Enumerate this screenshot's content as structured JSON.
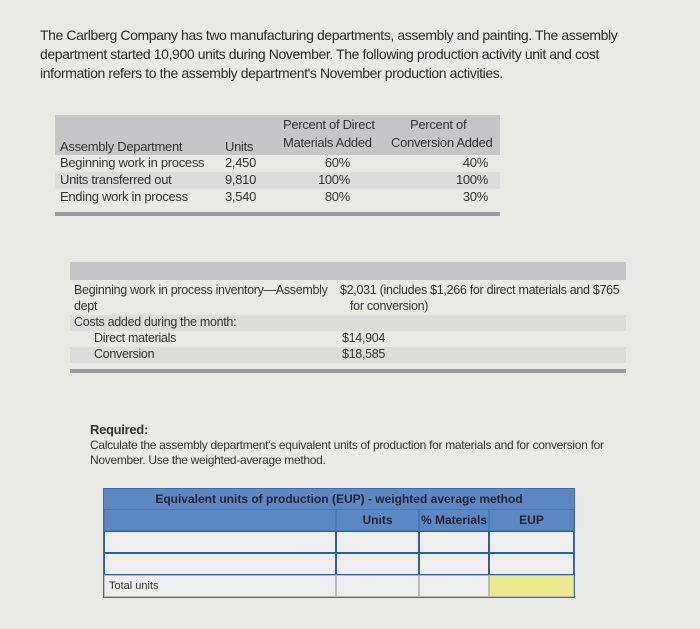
{
  "intro": "The Carlberg Company has two manufacturing departments, assembly and painting. The assembly department started 10,900 units during November. The following production activity unit and cost information refers to the assembly department's November production activities.",
  "production_table": {
    "headers": {
      "department": "Assembly Department",
      "units": "Units",
      "materials_l1": "Percent of Direct",
      "materials_l2": "Materials Added",
      "conversion_l1": "Percent of",
      "conversion_l2": "Conversion Added"
    },
    "rows": [
      {
        "label": "Beginning work in process",
        "units": "2,450",
        "materials": "60%",
        "conversion": "40%"
      },
      {
        "label": "Units transferred out",
        "units": "9,810",
        "materials": "100%",
        "conversion": "100%"
      },
      {
        "label": "Ending work in process",
        "units": "3,540",
        "materials": "80%",
        "conversion": "30%"
      }
    ]
  },
  "cost_table": {
    "beginning_label_l1": "Beginning work in process inventory—Assembly",
    "beginning_label_l2": "dept",
    "beginning_value_l1": "$2,031 (includes $1,266 for direct materials and $765",
    "beginning_value_l2": "for conversion)",
    "costs_added_label": "Costs added during the month:",
    "direct_materials_label": "Direct materials",
    "direct_materials_value": "$14,904",
    "conversion_label": "Conversion",
    "conversion_value": "$18,585"
  },
  "required": {
    "title": "Required:",
    "text": "Calculate the assembly department's equivalent units of production for materials and for conversion for November. Use the weighted-average method."
  },
  "eup_table": {
    "title": "Equivalent units of production (EUP) - weighted average method",
    "columns": [
      "",
      "Units",
      "% Materials",
      "EUP"
    ],
    "total_label": "Total units",
    "colors": {
      "header": "#5b88c4",
      "total_eup": "#ece98e"
    }
  }
}
